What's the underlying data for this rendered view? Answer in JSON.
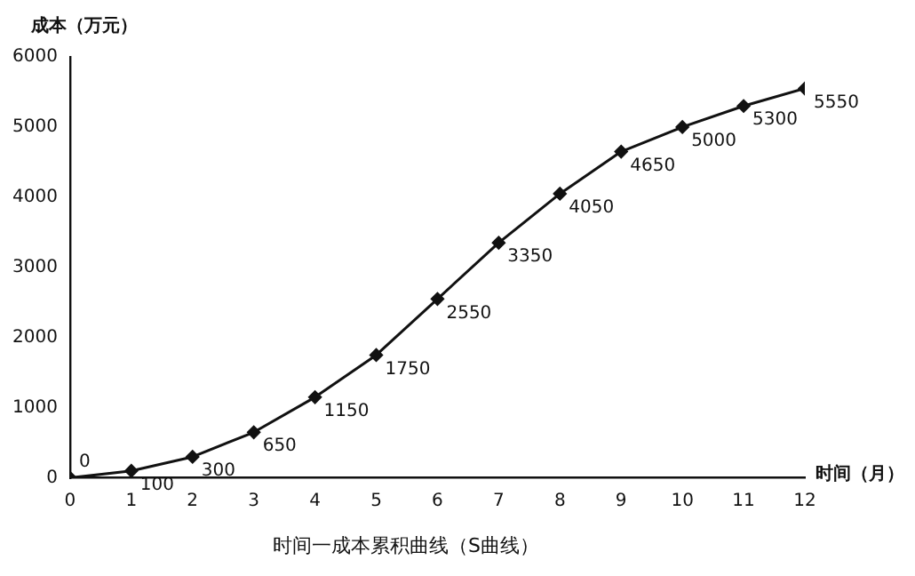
{
  "chart_data": {
    "type": "line",
    "title": "时间一成本累积曲线（S曲线）",
    "xlabel": "时间（月）",
    "ylabel": "成本（万元）",
    "x": [
      0,
      1,
      2,
      3,
      4,
      5,
      6,
      7,
      8,
      9,
      10,
      11,
      12
    ],
    "series": [
      {
        "color": "#111111",
        "values": [
          0,
          100,
          300,
          650,
          1150,
          1750,
          2550,
          3350,
          4050,
          4650,
          5000,
          5300,
          5550
        ]
      }
    ],
    "xlim": [
      0,
      12
    ],
    "xticks": [
      0,
      1,
      2,
      3,
      4,
      5,
      6,
      7,
      8,
      9,
      10,
      11,
      12
    ],
    "ylim": [
      0,
      6000
    ],
    "yticks": [
      0,
      1000,
      2000,
      3000,
      4000,
      5000,
      6000
    ],
    "grid": false,
    "legend": false,
    "marker": "diamond",
    "line_style": "solid",
    "data_labels": true
  }
}
